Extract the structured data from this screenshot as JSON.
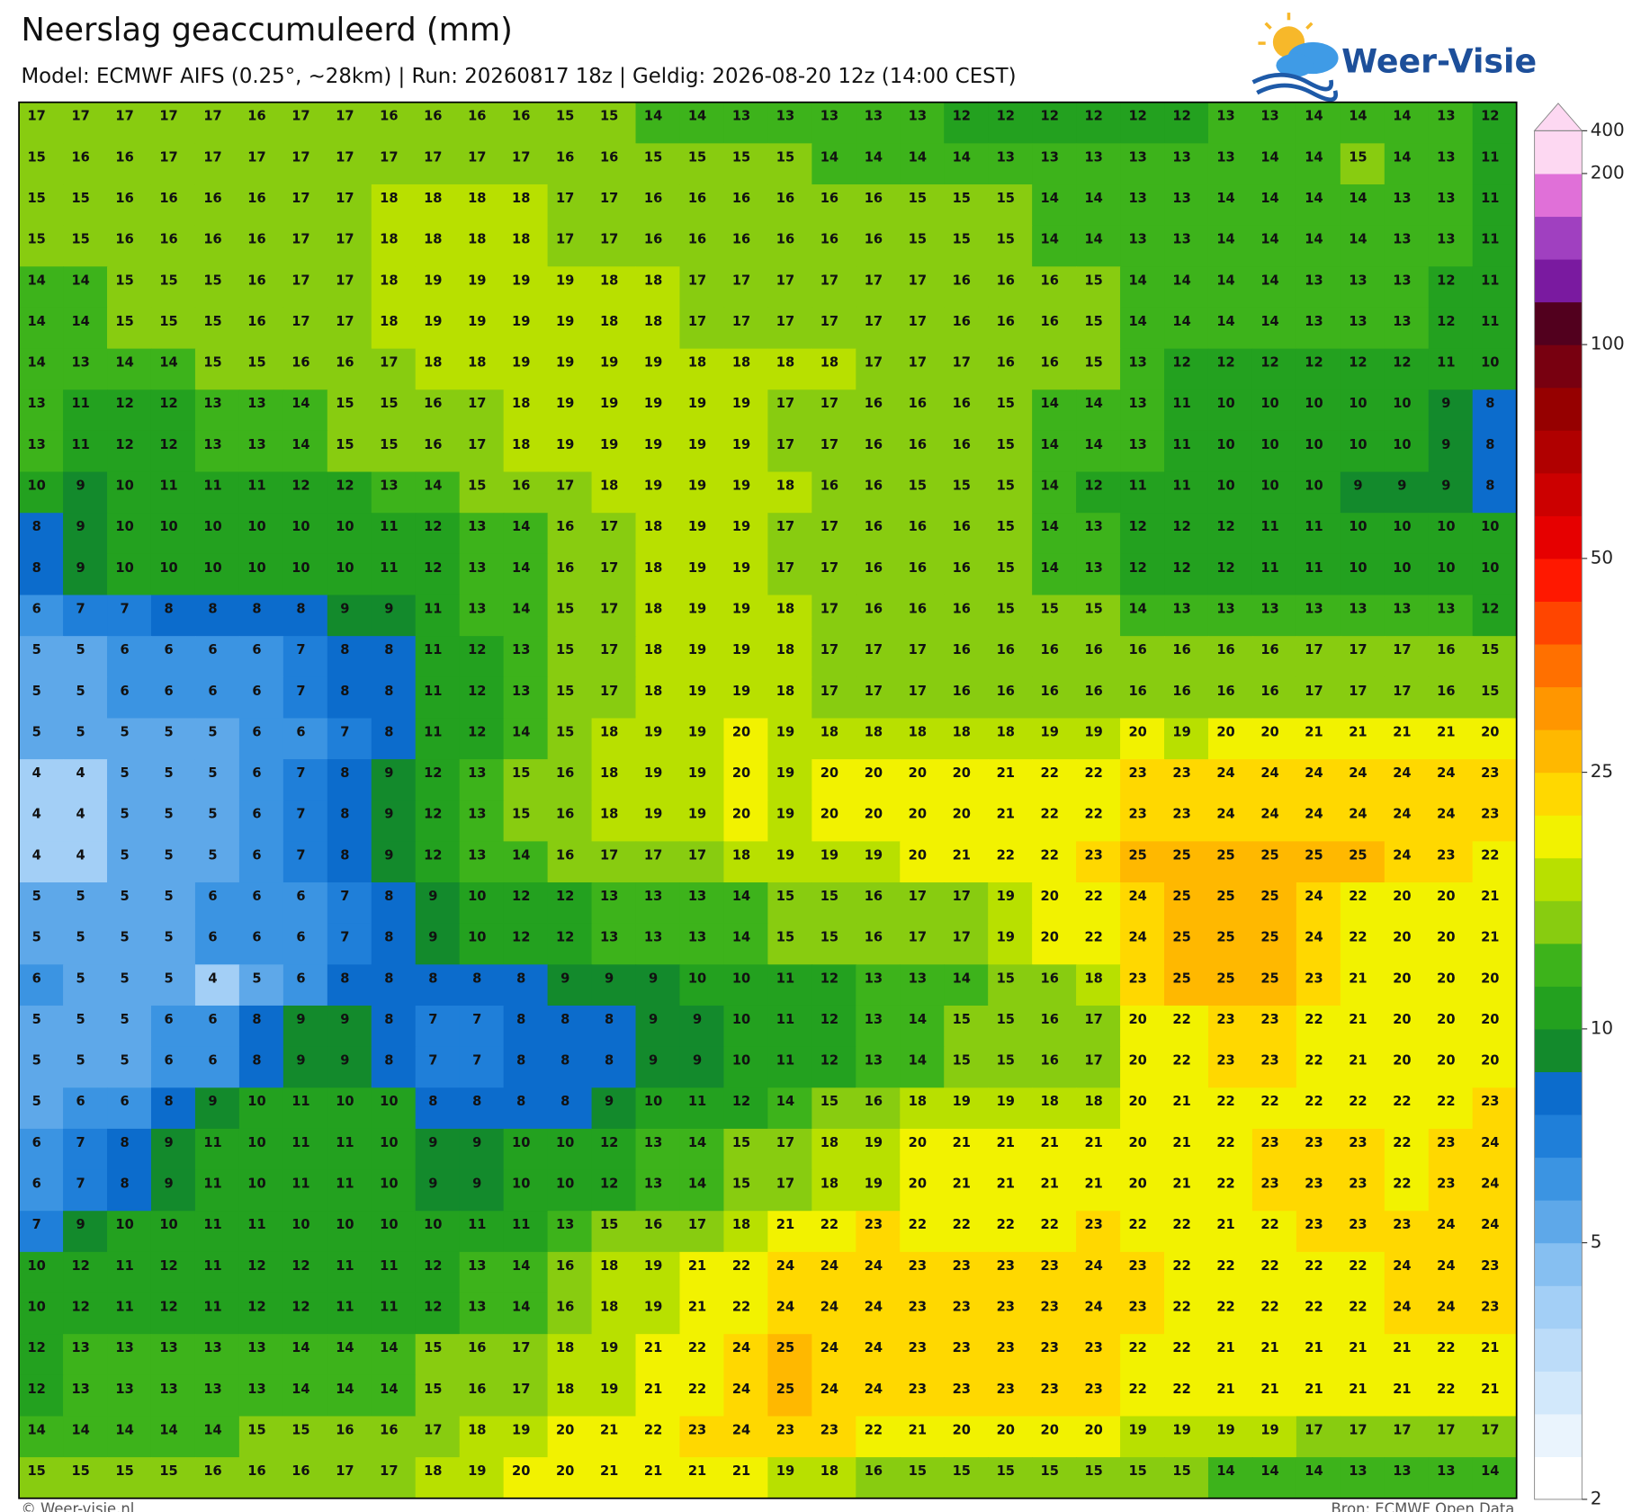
{
  "header": {
    "title": "Neerslag geaccumuleerd (mm)",
    "subtitle": "Model: ECMWF AIFS (0.25°, ~28km)  |  Run: 20260817 18z  |  Geldig: 2026-08-20 12z (14:00 CEST)",
    "logo": "Weer-Visie"
  },
  "map": {
    "grid": [
      [
        17,
        17,
        17,
        17,
        17,
        16,
        17,
        17,
        16,
        16,
        16,
        16,
        15,
        15,
        14,
        14,
        13,
        13,
        13,
        13,
        13,
        12,
        12,
        12,
        12,
        12,
        12,
        13,
        13,
        14,
        14,
        14,
        13,
        12
      ],
      [
        15,
        16,
        16,
        17,
        17,
        17,
        17,
        17,
        17,
        17,
        17,
        17,
        16,
        16,
        15,
        15,
        15,
        15,
        14,
        14,
        14,
        14,
        13,
        13,
        13,
        13,
        13,
        13,
        14,
        14,
        15,
        14,
        13,
        11
      ],
      [
        15,
        15,
        16,
        16,
        16,
        16,
        17,
        17,
        18,
        18,
        18,
        18,
        17,
        17,
        16,
        16,
        16,
        16,
        16,
        16,
        15,
        15,
        15,
        14,
        14,
        13,
        13,
        14,
        14,
        14,
        14,
        13,
        13,
        11
      ],
      [
        15,
        15,
        16,
        16,
        16,
        16,
        17,
        17,
        18,
        18,
        18,
        18,
        17,
        17,
        16,
        16,
        16,
        16,
        16,
        16,
        15,
        15,
        15,
        14,
        14,
        13,
        13,
        14,
        14,
        14,
        14,
        13,
        13,
        11
      ],
      [
        14,
        14,
        15,
        15,
        15,
        16,
        17,
        17,
        18,
        19,
        19,
        19,
        19,
        18,
        18,
        17,
        17,
        17,
        17,
        17,
        17,
        16,
        16,
        16,
        15,
        14,
        14,
        14,
        14,
        13,
        13,
        13,
        12,
        11
      ],
      [
        14,
        14,
        15,
        15,
        15,
        16,
        17,
        17,
        18,
        19,
        19,
        19,
        19,
        18,
        18,
        17,
        17,
        17,
        17,
        17,
        17,
        16,
        16,
        16,
        15,
        14,
        14,
        14,
        14,
        13,
        13,
        13,
        12,
        11
      ],
      [
        14,
        13,
        14,
        14,
        15,
        15,
        16,
        16,
        17,
        18,
        18,
        19,
        19,
        19,
        19,
        18,
        18,
        18,
        18,
        17,
        17,
        17,
        16,
        16,
        15,
        13,
        12,
        12,
        12,
        12,
        12,
        12,
        11,
        10
      ],
      [
        13,
        11,
        12,
        12,
        13,
        13,
        14,
        15,
        15,
        16,
        17,
        18,
        19,
        19,
        19,
        19,
        19,
        17,
        17,
        16,
        16,
        16,
        15,
        14,
        14,
        13,
        11,
        10,
        10,
        10,
        10,
        10,
        9,
        8
      ],
      [
        13,
        11,
        12,
        12,
        13,
        13,
        14,
        15,
        15,
        16,
        17,
        18,
        19,
        19,
        19,
        19,
        19,
        17,
        17,
        16,
        16,
        16,
        15,
        14,
        14,
        13,
        11,
        10,
        10,
        10,
        10,
        10,
        9,
        8
      ],
      [
        10,
        9,
        10,
        11,
        11,
        11,
        12,
        12,
        13,
        14,
        15,
        16,
        17,
        18,
        19,
        19,
        19,
        18,
        16,
        16,
        15,
        15,
        15,
        14,
        12,
        11,
        11,
        10,
        10,
        10,
        9,
        9,
        9,
        8
      ],
      [
        8,
        9,
        10,
        10,
        10,
        10,
        10,
        10,
        11,
        12,
        13,
        14,
        16,
        17,
        18,
        19,
        19,
        17,
        17,
        16,
        16,
        16,
        15,
        14,
        13,
        12,
        12,
        12,
        11,
        11,
        10,
        10,
        10,
        10
      ],
      [
        8,
        9,
        10,
        10,
        10,
        10,
        10,
        10,
        11,
        12,
        13,
        14,
        16,
        17,
        18,
        19,
        19,
        17,
        17,
        16,
        16,
        16,
        15,
        14,
        13,
        12,
        12,
        12,
        11,
        11,
        10,
        10,
        10,
        10
      ],
      [
        6,
        7,
        7,
        8,
        8,
        8,
        8,
        9,
        9,
        11,
        13,
        14,
        15,
        17,
        18,
        19,
        19,
        18,
        17,
        16,
        16,
        16,
        15,
        15,
        15,
        14,
        13,
        13,
        13,
        13,
        13,
        13,
        13,
        12
      ],
      [
        5,
        5,
        6,
        6,
        6,
        6,
        7,
        8,
        8,
        11,
        12,
        13,
        15,
        17,
        18,
        19,
        19,
        18,
        17,
        17,
        17,
        16,
        16,
        16,
        16,
        16,
        16,
        16,
        16,
        17,
        17,
        17,
        16,
        15
      ],
      [
        5,
        5,
        6,
        6,
        6,
        6,
        7,
        8,
        8,
        11,
        12,
        13,
        15,
        17,
        18,
        19,
        19,
        18,
        17,
        17,
        17,
        16,
        16,
        16,
        16,
        16,
        16,
        16,
        16,
        17,
        17,
        17,
        16,
        15
      ],
      [
        5,
        5,
        5,
        5,
        5,
        6,
        6,
        7,
        8,
        11,
        12,
        14,
        15,
        18,
        19,
        19,
        20,
        19,
        18,
        18,
        18,
        18,
        18,
        19,
        19,
        20,
        19,
        20,
        20,
        21,
        21,
        21,
        21,
        20
      ],
      [
        4,
        4,
        5,
        5,
        5,
        6,
        7,
        8,
        9,
        12,
        13,
        15,
        16,
        18,
        19,
        19,
        20,
        19,
        20,
        20,
        20,
        20,
        21,
        22,
        22,
        23,
        23,
        24,
        24,
        24,
        24,
        24,
        24,
        23
      ],
      [
        4,
        4,
        5,
        5,
        5,
        6,
        7,
        8,
        9,
        12,
        13,
        15,
        16,
        18,
        19,
        19,
        20,
        19,
        20,
        20,
        20,
        20,
        21,
        22,
        22,
        23,
        23,
        24,
        24,
        24,
        24,
        24,
        24,
        23
      ],
      [
        4,
        4,
        5,
        5,
        5,
        6,
        7,
        8,
        9,
        12,
        13,
        14,
        16,
        17,
        17,
        17,
        18,
        19,
        19,
        19,
        20,
        21,
        22,
        22,
        23,
        25,
        25,
        25,
        25,
        25,
        25,
        24,
        23,
        22
      ],
      [
        5,
        5,
        5,
        5,
        6,
        6,
        6,
        7,
        8,
        9,
        10,
        12,
        12,
        13,
        13,
        13,
        14,
        15,
        15,
        16,
        17,
        17,
        19,
        20,
        22,
        24,
        25,
        25,
        25,
        24,
        22,
        20,
        20,
        21
      ],
      [
        5,
        5,
        5,
        5,
        6,
        6,
        6,
        7,
        8,
        9,
        10,
        12,
        12,
        13,
        13,
        13,
        14,
        15,
        15,
        16,
        17,
        17,
        19,
        20,
        22,
        24,
        25,
        25,
        25,
        24,
        22,
        20,
        20,
        21
      ],
      [
        6,
        5,
        5,
        5,
        4,
        5,
        6,
        8,
        8,
        8,
        8,
        8,
        9,
        9,
        9,
        10,
        10,
        11,
        12,
        13,
        13,
        14,
        15,
        16,
        18,
        23,
        25,
        25,
        25,
        23,
        21,
        20,
        20,
        20
      ],
      [
        5,
        5,
        5,
        6,
        6,
        8,
        9,
        9,
        8,
        7,
        7,
        8,
        8,
        8,
        9,
        9,
        10,
        11,
        12,
        13,
        14,
        15,
        15,
        16,
        17,
        20,
        22,
        23,
        23,
        22,
        21,
        20,
        20,
        20
      ],
      [
        5,
        5,
        5,
        6,
        6,
        8,
        9,
        9,
        8,
        7,
        7,
        8,
        8,
        8,
        9,
        9,
        10,
        11,
        12,
        13,
        14,
        15,
        15,
        16,
        17,
        20,
        22,
        23,
        23,
        22,
        21,
        20,
        20,
        20
      ],
      [
        5,
        6,
        6,
        8,
        9,
        10,
        11,
        10,
        10,
        8,
        8,
        8,
        8,
        9,
        10,
        11,
        12,
        14,
        15,
        16,
        18,
        19,
        19,
        18,
        18,
        20,
        21,
        22,
        22,
        22,
        22,
        22,
        22,
        23
      ],
      [
        6,
        7,
        8,
        9,
        11,
        10,
        11,
        11,
        10,
        9,
        9,
        10,
        10,
        12,
        13,
        14,
        15,
        17,
        18,
        19,
        20,
        21,
        21,
        21,
        21,
        20,
        21,
        22,
        23,
        23,
        23,
        22,
        23,
        24
      ],
      [
        6,
        7,
        8,
        9,
        11,
        10,
        11,
        11,
        10,
        9,
        9,
        10,
        10,
        12,
        13,
        14,
        15,
        17,
        18,
        19,
        20,
        21,
        21,
        21,
        21,
        20,
        21,
        22,
        23,
        23,
        23,
        22,
        23,
        24
      ],
      [
        7,
        9,
        10,
        10,
        11,
        11,
        10,
        10,
        10,
        10,
        11,
        11,
        13,
        15,
        16,
        17,
        18,
        21,
        22,
        23,
        22,
        22,
        22,
        22,
        23,
        22,
        22,
        21,
        22,
        23,
        23,
        23,
        24,
        24
      ],
      [
        10,
        12,
        11,
        12,
        11,
        12,
        12,
        11,
        11,
        12,
        13,
        14,
        16,
        18,
        19,
        21,
        22,
        24,
        24,
        24,
        23,
        23,
        23,
        23,
        24,
        23,
        22,
        22,
        22,
        22,
        22,
        24,
        24,
        23
      ],
      [
        10,
        12,
        11,
        12,
        11,
        12,
        12,
        11,
        11,
        12,
        13,
        14,
        16,
        18,
        19,
        21,
        22,
        24,
        24,
        24,
        23,
        23,
        23,
        23,
        24,
        23,
        22,
        22,
        22,
        22,
        22,
        24,
        24,
        23
      ],
      [
        12,
        13,
        13,
        13,
        13,
        13,
        14,
        14,
        14,
        15,
        16,
        17,
        18,
        19,
        21,
        22,
        24,
        25,
        24,
        24,
        23,
        23,
        23,
        23,
        23,
        22,
        22,
        21,
        21,
        21,
        21,
        21,
        22,
        21
      ],
      [
        12,
        13,
        13,
        13,
        13,
        13,
        14,
        14,
        14,
        15,
        16,
        17,
        18,
        19,
        21,
        22,
        24,
        25,
        24,
        24,
        23,
        23,
        23,
        23,
        23,
        22,
        22,
        21,
        21,
        21,
        21,
        21,
        22,
        21
      ],
      [
        14,
        14,
        14,
        14,
        14,
        15,
        15,
        16,
        16,
        17,
        18,
        19,
        20,
        21,
        22,
        23,
        24,
        23,
        23,
        22,
        21,
        20,
        20,
        20,
        20,
        19,
        19,
        19,
        19,
        17,
        17,
        17,
        17,
        17
      ],
      [
        15,
        15,
        15,
        15,
        16,
        16,
        16,
        17,
        17,
        18,
        19,
        20,
        20,
        21,
        21,
        21,
        21,
        19,
        18,
        16,
        15,
        15,
        15,
        15,
        15,
        15,
        15,
        14,
        14,
        14,
        13,
        13,
        13,
        14
      ]
    ],
    "colorbar": {
      "levels": [
        2,
        2.5,
        3,
        3.5,
        4,
        4.5,
        5,
        6,
        7,
        8,
        9,
        10,
        12.5,
        15,
        17.5,
        20,
        22.5,
        25,
        30,
        35,
        40,
        45,
        50,
        60,
        70,
        80,
        90,
        100,
        125,
        150,
        175,
        200,
        400
      ],
      "colors": [
        "#ffffff",
        "#eaf4fd",
        "#d2e8fb",
        "#bcdcf9",
        "#a3cff6",
        "#86bff1",
        "#5ea8e9",
        "#3b94e2",
        "#1f7fd9",
        "#0c6ccc",
        "#138a2c",
        "#23a11f",
        "#3db31b",
        "#88cc10",
        "#b8e000",
        "#f2f200",
        "#ffd800",
        "#ffb800",
        "#ff9600",
        "#ff7000",
        "#ff4500",
        "#ff1800",
        "#e60000",
        "#cc0000",
        "#b00000",
        "#960000",
        "#780010",
        "#52001e",
        "#7a1aa0",
        "#a040c0",
        "#e070d8",
        "#fdd8f2"
      ],
      "ticks": [
        2,
        5,
        10,
        25,
        50,
        100,
        200,
        400
      ]
    }
  },
  "footer": {
    "left": "© Weer-visie.nl",
    "right": "Bron: ECMWF Open Data"
  }
}
